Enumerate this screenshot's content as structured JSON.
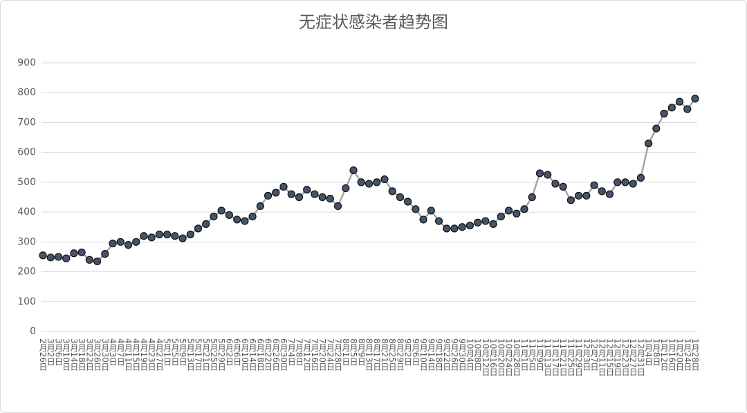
{
  "chart_data": {
    "type": "line",
    "title": "无症状感染者趋势图",
    "categories": [
      "2月26日",
      "3月2日",
      "3月6日",
      "3月10日",
      "3月14日",
      "3月18日",
      "3月22日",
      "3月26日",
      "3月30日",
      "4月3日",
      "4月7日",
      "4月11日",
      "4月15日",
      "4月19日",
      "4月23日",
      "4月27日",
      "5月1日",
      "5月5日",
      "5月9日",
      "5月13日",
      "5月17日",
      "5月21日",
      "5月25日",
      "5月29日",
      "6月2日",
      "6月6日",
      "6月10日",
      "6月14日",
      "6月18日",
      "6月22日",
      "6月26日",
      "6月30日",
      "7月4日",
      "7月8日",
      "7月12日",
      "7月16日",
      "7月20日",
      "7月24日",
      "7月28日",
      "8月1日",
      "8月5日",
      "8月9日",
      "8月13日",
      "8月17日",
      "8月21日",
      "8月25日",
      "8月29日",
      "9月2日",
      "9月6日",
      "9月10日",
      "9月14日",
      "9月18日",
      "9月22日",
      "9月26日",
      "9月30日",
      "10月4日",
      "10月8日",
      "10月12日",
      "10月16日",
      "10月20日",
      "10月24日",
      "10月28日",
      "11月1日",
      "11月5日",
      "11月9日",
      "11月13日",
      "11月17日",
      "11月21日",
      "11月25日",
      "11月29日",
      "12月3日",
      "12月7日",
      "12月11日",
      "12月15日",
      "12月19日",
      "12月23日",
      "12月27日",
      "12月31日",
      "1月4日",
      "1月8日",
      "1月12日",
      "1月16日",
      "1月20日",
      "1月24日",
      "1月28日"
    ],
    "series": [
      {
        "color": "#a5a5a5",
        "marker_color": "#44546a",
        "values": [
          255,
          248,
          250,
          245,
          262,
          265,
          240,
          235,
          260,
          295,
          300,
          290,
          300,
          320,
          315,
          325,
          325,
          320,
          312,
          325,
          345,
          360,
          385,
          405,
          390,
          375,
          370,
          385,
          420,
          455,
          465,
          485,
          460,
          450,
          475,
          460,
          450,
          445,
          420,
          480,
          540,
          500,
          495,
          500,
          510,
          470,
          450,
          435,
          410,
          375,
          405,
          370,
          345,
          345,
          350,
          355,
          365,
          370,
          360,
          385,
          405,
          395,
          410,
          450,
          530,
          525,
          495,
          485,
          440,
          455,
          455,
          490,
          470,
          460,
          500,
          500,
          495,
          515,
          630,
          680,
          730,
          750,
          770,
          745,
          780
        ]
      }
    ],
    "ylim": [
      0,
      900
    ],
    "yticks": [
      0,
      100,
      200,
      300,
      400,
      500,
      600,
      700,
      800,
      900
    ],
    "grid": true
  }
}
